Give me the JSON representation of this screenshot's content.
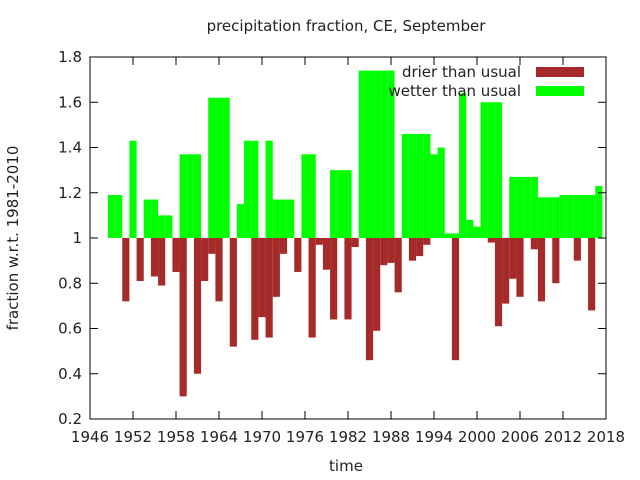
{
  "chart_data": {
    "type": "bar",
    "title": "precipitation fraction, CE, September",
    "xlabel": "time",
    "ylabel": "fraction w.r.t. 1981-2010",
    "xlim": [
      1946,
      2018
    ],
    "ylim": [
      0.2,
      1.8
    ],
    "baseline": 1.0,
    "x_ticks": [
      1946,
      1952,
      1958,
      1964,
      1970,
      1976,
      1982,
      1988,
      1994,
      2000,
      2006,
      2012,
      2018
    ],
    "y_ticks": [
      0.2,
      0.4,
      0.6,
      0.8,
      1,
      1.2,
      1.4,
      1.6,
      1.8
    ],
    "legend_position": "top-right",
    "colors": {
      "drier": "#a52a2a",
      "wetter": "#00ff00"
    },
    "series": [
      {
        "name": "drier than usual",
        "x": [
          1951,
          1953,
          1955,
          1956,
          1958,
          1959,
          1961,
          1962,
          1963,
          1964,
          1966,
          1969,
          1970,
          1971,
          1972,
          1973,
          1975,
          1977,
          1978,
          1979,
          1980,
          1982,
          1983,
          1985,
          1986,
          1987,
          1988,
          1989,
          1991,
          1992,
          1993,
          1997,
          2002,
          2003,
          2004,
          2005,
          2006,
          2008,
          2009,
          2011,
          2014,
          2016
        ],
        "values": [
          0.72,
          0.81,
          0.83,
          0.79,
          0.85,
          0.3,
          0.4,
          0.81,
          0.93,
          0.72,
          0.52,
          0.55,
          0.65,
          0.56,
          0.74,
          0.93,
          0.85,
          0.56,
          0.97,
          0.86,
          0.64,
          0.64,
          0.96,
          0.46,
          0.59,
          0.88,
          0.89,
          0.76,
          0.9,
          0.92,
          0.97,
          0.46,
          0.98,
          0.61,
          0.71,
          0.82,
          0.74,
          0.95,
          0.72,
          0.8,
          0.9,
          0.68
        ]
      },
      {
        "name": "wetter than usual",
        "x": [
          1949,
          1950,
          1951,
          1952,
          1953,
          1954,
          1955,
          1956,
          1957,
          1958,
          1959,
          1960,
          1961,
          1962,
          1963,
          1964,
          1965,
          1966,
          1967,
          1968,
          1969,
          1970,
          1971,
          1972,
          1973,
          1974,
          1975,
          1976,
          1977,
          1978,
          1979,
          1980,
          1981,
          1982,
          1983,
          1984,
          1985,
          1986,
          1987,
          1988,
          1989,
          1990,
          1991,
          1992,
          1993,
          1994,
          1995,
          1996,
          1997,
          1998,
          1999,
          2000,
          2001,
          2002,
          2003,
          2004,
          2005,
          2006,
          2007,
          2008,
          2009,
          2010,
          2011,
          2012,
          2013,
          2014,
          2015,
          2016,
          2017
        ],
        "values": [
          1.19,
          1.19,
          1.0,
          1.43,
          1.0,
          1.17,
          1.17,
          1.1,
          1.1,
          1.0,
          1.37,
          1.37,
          1.37,
          1.0,
          1.62,
          1.62,
          1.62,
          1.0,
          1.15,
          1.43,
          1.43,
          1.0,
          1.43,
          1.17,
          1.17,
          1.17,
          1.0,
          1.37,
          1.37,
          1.0,
          1.0,
          1.3,
          1.3,
          1.3,
          1.0,
          1.74,
          1.74,
          1.74,
          1.74,
          1.74,
          1.0,
          1.46,
          1.46,
          1.46,
          1.46,
          1.37,
          1.4,
          1.02,
          1.02,
          1.64,
          1.08,
          1.05,
          1.6,
          1.6,
          1.6,
          1.0,
          1.27,
          1.27,
          1.27,
          1.27,
          1.18,
          1.18,
          1.18,
          1.19,
          1.19,
          1.19,
          1.19,
          1.19,
          1.23
        ]
      }
    ]
  }
}
